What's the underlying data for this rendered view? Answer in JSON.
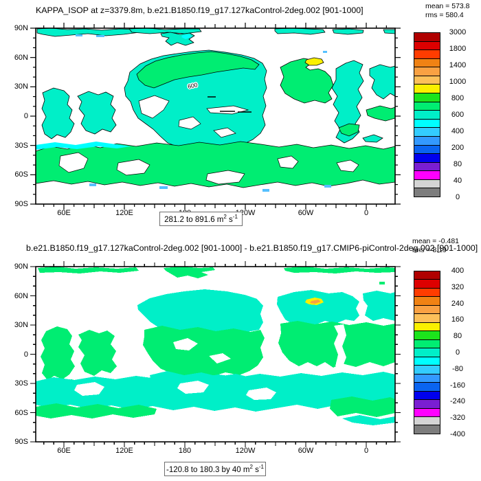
{
  "figure1": {
    "title": "KAPPA_ISOP at z=3379.8m, b.e21.B1850.f19_g17.127kaControl-2deg.002 [901-1000]",
    "mean_label": "mean = 573.8",
    "rms_label": "rms = 580.4",
    "contour_label": "600",
    "range": {
      "text": "281.2 to 891.6 m",
      "sup1": "2",
      "mid": " s",
      "sup2": "-1"
    }
  },
  "figure2": {
    "title": "b.e21.B1850.f19_g17.127kaControl-2deg.002 [901-1000] - b.e21.B1850.f19_g17.CMIP6-piControl-2deg.002 [901-1000]",
    "mean_label": "mean = -0.481",
    "rms_label": "rms = 8.19",
    "range": {
      "text": "-120.8 to 180.3 by 40 m",
      "sup1": "2",
      "mid": " s",
      "sup2": "-1"
    }
  },
  "axes": {
    "lat_labels": [
      "90N",
      "60N",
      "30N",
      "0",
      "30S",
      "60S",
      "90S"
    ],
    "lon_labels": [
      "60E",
      "120E",
      "180",
      "120W",
      "60W",
      "0"
    ]
  },
  "colorbar1": {
    "labels": [
      "3000",
      "1800",
      "1400",
      "1000",
      "800",
      "600",
      "400",
      "200",
      "80",
      "40",
      "0"
    ],
    "colors": [
      "#b00000",
      "#dd0000",
      "#ff3c00",
      "#f08214",
      "#f9a143",
      "#fcc05a",
      "#faf000",
      "#1ce41c",
      "#00ed72",
      "#00efc8",
      "#00ffff",
      "#33ccff",
      "#3399ff",
      "#0a64f0",
      "#0000ee",
      "#7a1ed2",
      "#ff00ff",
      "#d4d4d4",
      "#7d7d7d"
    ]
  },
  "colorbar2": {
    "labels": [
      "400",
      "320",
      "240",
      "160",
      "80",
      "0",
      "-80",
      "-160",
      "-240",
      "-320",
      "-400"
    ],
    "colors": [
      "#b00000",
      "#dd0000",
      "#ff3c00",
      "#f08214",
      "#f9a143",
      "#fcc05a",
      "#faf000",
      "#1ce41c",
      "#00ed72",
      "#00efc8",
      "#00ffff",
      "#33ccff",
      "#3399ff",
      "#0a64f0",
      "#0000ee",
      "#7a1ed2",
      "#ff00ff",
      "#d4d4d4",
      "#7d7d7d"
    ]
  },
  "map_colors": {
    "ocean_mid": "#00efc8",
    "ocean_green": "#00ed72",
    "cyan_patch": "#00ffff",
    "blue_patch": "#55c0ff",
    "maximum_yellow": "#faf000",
    "maximum_orange": "#f9a143",
    "land_mask": "#ffffff"
  },
  "chart_data": [
    {
      "type": "heatmap",
      "title": "KAPPA_ISOP at z=3379.8m, b.e21.B1850.f19_g17.127kaControl-2deg.002 [901-1000]",
      "projection": "global lat-lon ocean map at depth z=3379.8m",
      "units": "m2 s-1",
      "mean": 573.8,
      "rms": 580.4,
      "data_min": 281.2,
      "data_max": 891.6,
      "colorbar_tick_labels": [
        3000,
        1800,
        1400,
        1000,
        800,
        600,
        400,
        200,
        80,
        40,
        0
      ],
      "x_tick_labels": [
        "60E",
        "120E",
        "180",
        "120W",
        "60W",
        "0"
      ],
      "y_tick_labels": [
        "90N",
        "60N",
        "30N",
        "0",
        "30S",
        "60S",
        "90S"
      ],
      "labeled_contour": 600,
      "legend_position": "right",
      "notes": "Ocean interior mostly 500-600 (turquoise); Southern Ocean band and subpolar N Pacific / N Atlantic 600-700 (green); strips 400-500 (cyan) and ~300-400 (light blue); local maximum 800-900 (yellow) in Labrador Sea; land and shallow bathymetry masked white; thin black contour outlines"
    },
    {
      "type": "heatmap",
      "title": "b.e21.B1850.f19_g17.127kaControl-2deg.002 [901-1000] - b.e21.B1850.f19_g17.CMIP6-piControl-2deg.002 [901-1000]",
      "projection": "global lat-lon ocean map, difference of two runs",
      "units": "m2 s-1",
      "mean": -0.481,
      "rms": "8.19 (partially obscured by overlapping title)",
      "data_min": -120.8,
      "data_max": 180.3,
      "contour_interval": 40,
      "colorbar_tick_labels": [
        400,
        320,
        240,
        160,
        80,
        0,
        -80,
        -160,
        -240,
        -320,
        -400
      ],
      "x_tick_labels": [
        "60E",
        "120E",
        "180",
        "120W",
        "60W",
        "0"
      ],
      "y_tick_labels": [
        "90N",
        "60N",
        "30N",
        "0",
        "30S",
        "60S",
        "90S"
      ],
      "legend_position": "right",
      "notes": "Differences mostly within +/-40: 0..40 shown green, -40..0 shown turquoise; local maximum 120-180 (yellow/orange) in Labrador Sea; no contour outlines"
    }
  ]
}
